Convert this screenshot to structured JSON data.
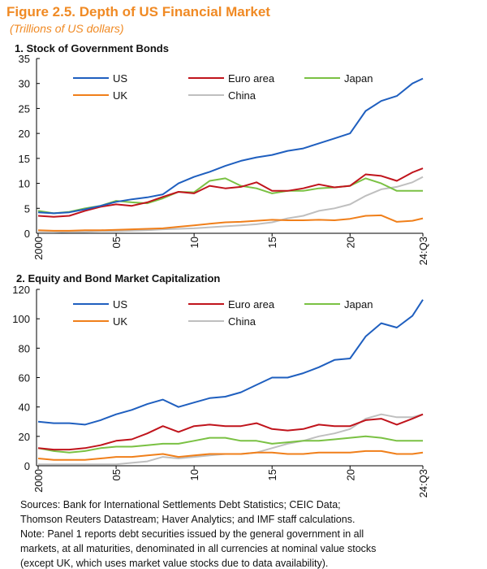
{
  "title": "Figure 2.5. Depth of US Financial Market",
  "subtitle": "(Trillions of US dollars)",
  "notes": [
    "Sources: Bank for International Settlements Debt Statistics; CEIC Data;",
    "Thomson Reuters Datastream; Haver Analytics; and IMF staff calculations.",
    "Note: Panel 1 reports debt securities issued by the general government in all",
    "markets, at all maturities, denominated in all currencies at nominal value stocks",
    "(except UK, which uses market value stocks due to data availability)."
  ],
  "chart_data": [
    {
      "type": "line",
      "title": "1. Stock of Government Bonds",
      "ylim": [
        0,
        35
      ],
      "yticks": [
        0,
        5,
        10,
        15,
        20,
        25,
        30,
        35
      ],
      "xticks": [
        {
          "x": 2000,
          "label": "2000"
        },
        {
          "x": 2005,
          "label": "05"
        },
        {
          "x": 2010,
          "label": "10"
        },
        {
          "x": 2015,
          "label": "15"
        },
        {
          "x": 2020,
          "label": "20"
        },
        {
          "x": 2024.67,
          "label": "24:Q3"
        }
      ],
      "legend": "top-left",
      "x": [
        2000,
        2001,
        2002,
        2003,
        2004,
        2005,
        2006,
        2007,
        2008,
        2009,
        2010,
        2011,
        2012,
        2013,
        2014,
        2015,
        2016,
        2017,
        2018,
        2019,
        2020,
        2021,
        2022,
        2023,
        2024,
        2024.67
      ],
      "series": [
        {
          "name": "US",
          "color": "#1f5fbf",
          "values": [
            4.2,
            4.0,
            4.2,
            4.8,
            5.5,
            6.3,
            6.8,
            7.2,
            7.8,
            10.0,
            11.3,
            12.3,
            13.5,
            14.5,
            15.2,
            15.7,
            16.5,
            17.0,
            18.0,
            19.0,
            20.0,
            24.5,
            26.5,
            27.5,
            30.0,
            31.0
          ]
        },
        {
          "name": "Euro area",
          "color": "#c0141c",
          "values": [
            3.5,
            3.3,
            3.5,
            4.5,
            5.3,
            5.8,
            5.5,
            6.2,
            7.3,
            8.3,
            8.0,
            9.5,
            9.0,
            9.3,
            10.2,
            8.5,
            8.5,
            9.0,
            9.8,
            9.2,
            9.5,
            11.8,
            11.5,
            10.5,
            12.2,
            13.0
          ]
        },
        {
          "name": "Japan",
          "color": "#7ac143",
          "values": [
            4.5,
            4.0,
            4.3,
            5.0,
            5.5,
            6.5,
            6.2,
            6.0,
            7.0,
            8.3,
            8.2,
            10.5,
            11.0,
            9.5,
            9.0,
            8.0,
            8.5,
            8.5,
            9.0,
            9.2,
            9.5,
            11.0,
            10.0,
            8.5,
            8.5,
            8.5
          ]
        },
        {
          "name": "UK",
          "color": "#f07f1a",
          "values": [
            0.6,
            0.5,
            0.5,
            0.6,
            0.6,
            0.7,
            0.8,
            0.9,
            1.0,
            1.3,
            1.6,
            1.9,
            2.2,
            2.3,
            2.5,
            2.7,
            2.6,
            2.6,
            2.7,
            2.6,
            2.9,
            3.5,
            3.6,
            2.3,
            2.5,
            3.0
          ]
        },
        {
          "name": "China",
          "color": "#bfbfbf",
          "values": [
            0.2,
            0.2,
            0.3,
            0.3,
            0.4,
            0.4,
            0.5,
            0.6,
            0.8,
            0.9,
            1.0,
            1.2,
            1.4,
            1.6,
            1.8,
            2.2,
            3.0,
            3.5,
            4.5,
            5.0,
            5.8,
            7.5,
            8.8,
            9.3,
            10.2,
            11.3
          ]
        }
      ]
    },
    {
      "type": "line",
      "title": "2. Equity and Bond Market Capitalization",
      "ylim": [
        0,
        120
      ],
      "yticks": [
        0,
        20,
        40,
        60,
        80,
        100,
        120
      ],
      "xticks": [
        {
          "x": 2000,
          "label": "2000"
        },
        {
          "x": 2005,
          "label": "05"
        },
        {
          "x": 2010,
          "label": "10"
        },
        {
          "x": 2015,
          "label": "15"
        },
        {
          "x": 2020,
          "label": "20"
        },
        {
          "x": 2024.67,
          "label": "24:Q3"
        }
      ],
      "legend": "top-left",
      "x": [
        2000,
        2001,
        2002,
        2003,
        2004,
        2005,
        2006,
        2007,
        2008,
        2009,
        2010,
        2011,
        2012,
        2013,
        2014,
        2015,
        2016,
        2017,
        2018,
        2019,
        2020,
        2021,
        2022,
        2023,
        2024,
        2024.67
      ],
      "series": [
        {
          "name": "US",
          "color": "#1f5fbf",
          "values": [
            30,
            29,
            29,
            28,
            31,
            35,
            38,
            42,
            45,
            40,
            43,
            46,
            47,
            50,
            55,
            60,
            60,
            63,
            67,
            72,
            73,
            88,
            97,
            94,
            102,
            113
          ]
        },
        {
          "name": "Euro area",
          "color": "#c0141c",
          "values": [
            12,
            11,
            11,
            12,
            14,
            17,
            18,
            22,
            27,
            23,
            27,
            28,
            27,
            27,
            29,
            25,
            24,
            25,
            28,
            27,
            27,
            31,
            32,
            28,
            32,
            35
          ]
        },
        {
          "name": "Japan",
          "color": "#7ac143",
          "values": [
            12,
            10,
            9,
            10,
            12,
            13,
            13,
            14,
            15,
            15,
            17,
            19,
            19,
            17,
            17,
            15,
            16,
            17,
            17,
            18,
            19,
            20,
            19,
            17,
            17,
            17
          ]
        },
        {
          "name": "UK",
          "color": "#f07f1a",
          "values": [
            5,
            4,
            4,
            4,
            5,
            6,
            6,
            7,
            8,
            6,
            7,
            8,
            8,
            8,
            9,
            9,
            8,
            8,
            9,
            9,
            9,
            10,
            10,
            8,
            8,
            9
          ]
        },
        {
          "name": "China",
          "color": "#bfbfbf",
          "values": [
            1,
            1,
            1,
            1,
            1,
            1,
            2,
            3,
            6,
            5,
            6,
            7,
            8,
            8,
            9,
            12,
            15,
            17,
            20,
            22,
            25,
            32,
            35,
            33,
            33,
            35
          ]
        }
      ]
    }
  ]
}
